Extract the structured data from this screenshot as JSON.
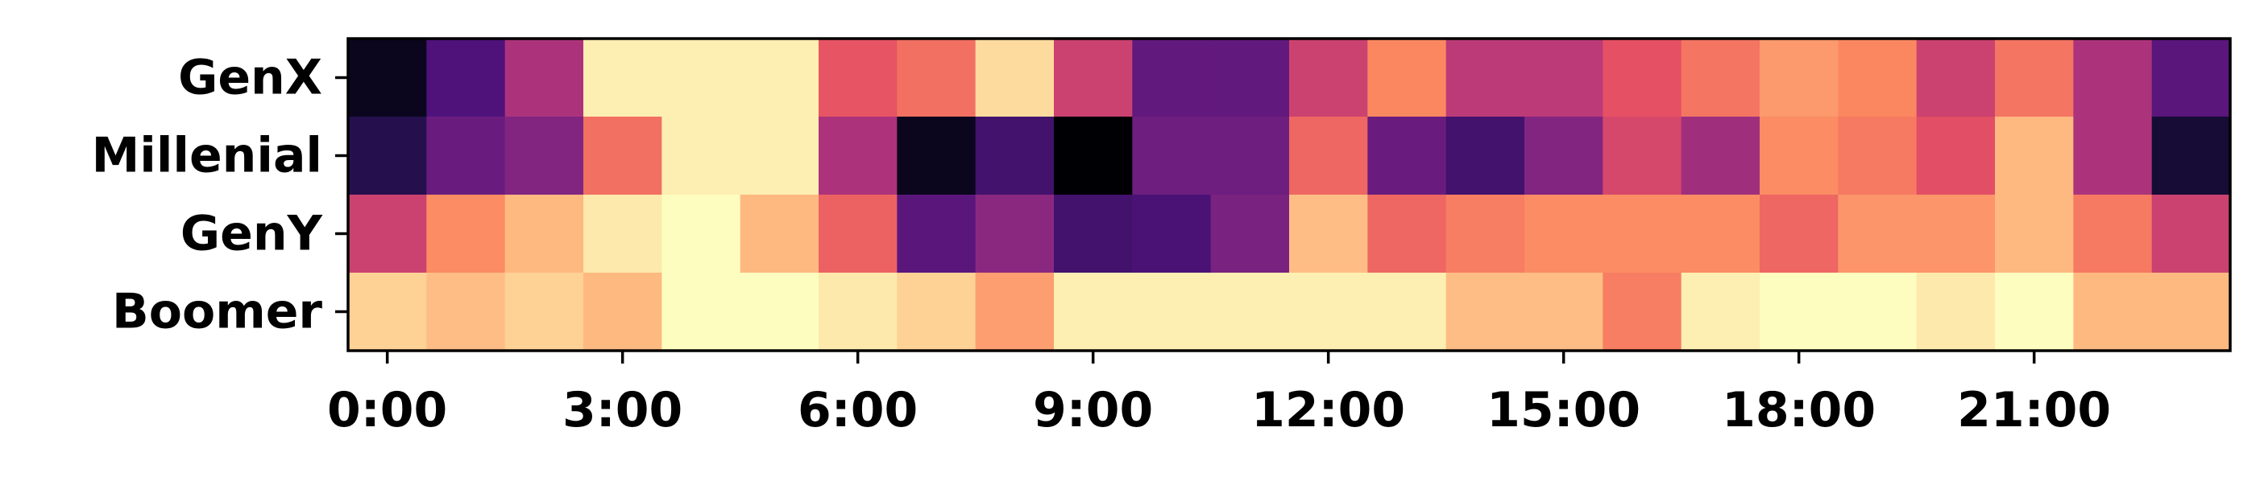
{
  "chart_data": {
    "type": "heatmap",
    "title": "",
    "xlabel": "",
    "ylabel": "",
    "colormap": "magma",
    "x_tick_labels": [
      "0:00",
      "3:00",
      "6:00",
      "9:00",
      "12:00",
      "15:00",
      "18:00",
      "21:00"
    ],
    "x_tick_hours": [
      0,
      3,
      6,
      9,
      12,
      15,
      18,
      21
    ],
    "hours": [
      0,
      1,
      2,
      3,
      4,
      5,
      6,
      7,
      8,
      9,
      10,
      11,
      12,
      13,
      14,
      15,
      16,
      17,
      18,
      19,
      20,
      21,
      22,
      23
    ],
    "rows": [
      "GenX",
      "Millenial",
      "GenY",
      "Boomer"
    ],
    "values": [
      [
        0.05,
        0.25,
        0.48,
        0.97,
        0.97,
        0.97,
        0.64,
        0.7,
        0.93,
        0.56,
        0.3,
        0.3,
        0.56,
        0.75,
        0.52,
        0.52,
        0.63,
        0.71,
        0.79,
        0.75,
        0.56,
        0.71,
        0.48,
        0.28
      ],
      [
        0.15,
        0.32,
        0.38,
        0.7,
        0.97,
        0.97,
        0.48,
        0.05,
        0.22,
        0.0,
        0.33,
        0.33,
        0.68,
        0.32,
        0.22,
        0.38,
        0.59,
        0.45,
        0.76,
        0.72,
        0.62,
        0.86,
        0.48,
        0.1
      ],
      [
        0.56,
        0.76,
        0.86,
        0.96,
        1.0,
        0.86,
        0.67,
        0.28,
        0.4,
        0.22,
        0.24,
        0.36,
        0.87,
        0.68,
        0.73,
        0.76,
        0.76,
        0.76,
        0.68,
        0.78,
        0.78,
        0.86,
        0.72,
        0.56
      ],
      [
        0.91,
        0.87,
        0.91,
        0.86,
        1.0,
        1.0,
        0.96,
        0.91,
        0.8,
        0.97,
        0.97,
        0.97,
        0.97,
        0.97,
        0.87,
        0.87,
        0.73,
        0.97,
        1.0,
        1.0,
        0.96,
        1.0,
        0.86,
        0.86
      ]
    ]
  }
}
